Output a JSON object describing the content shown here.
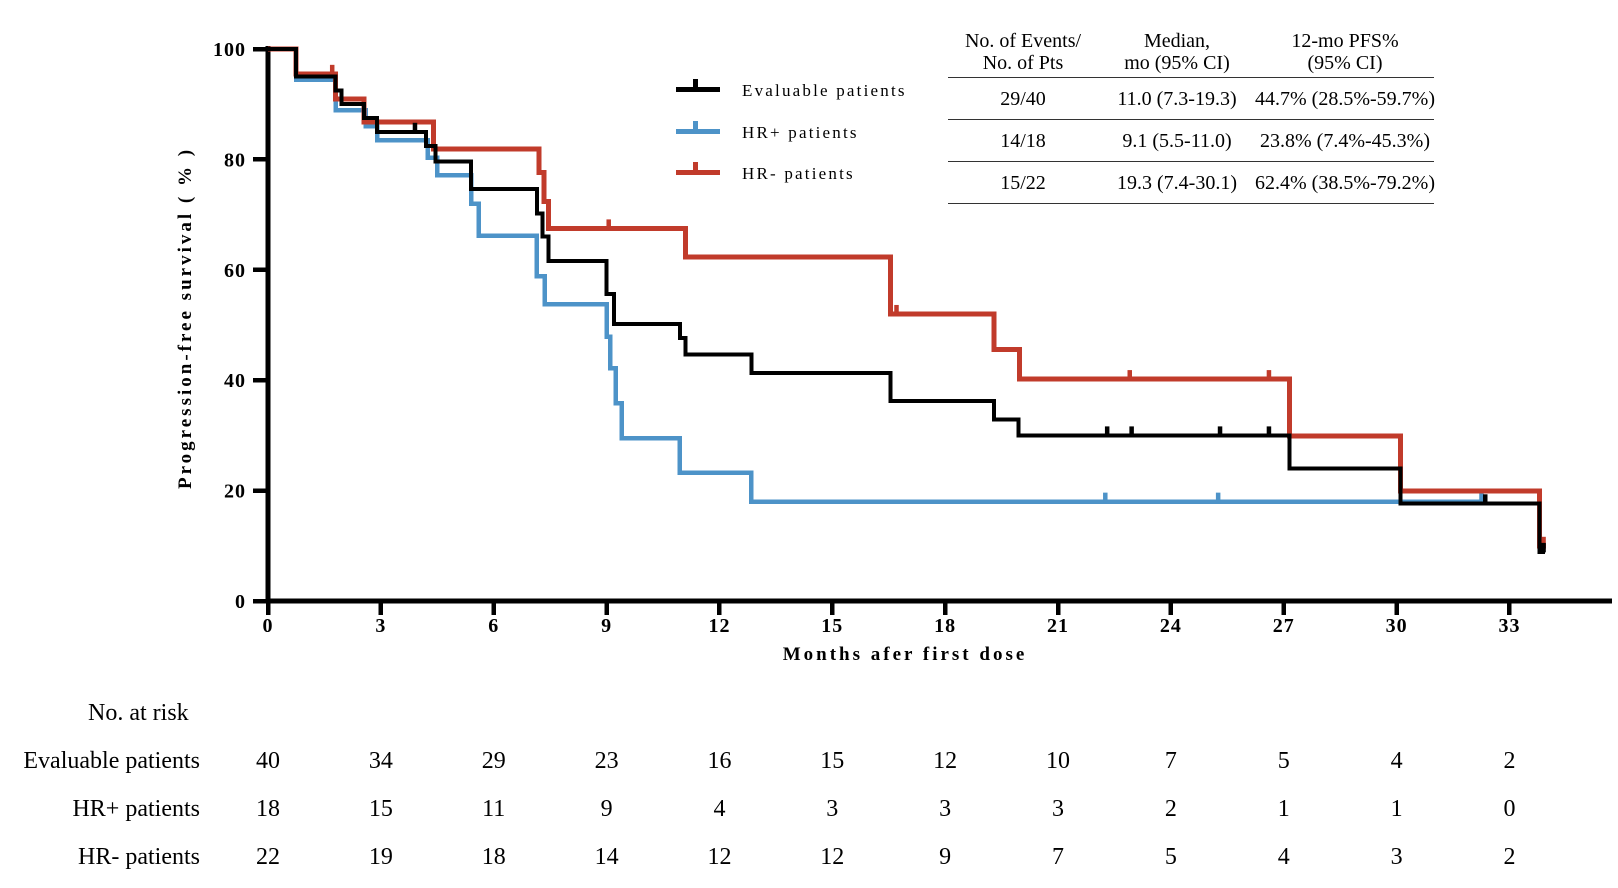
{
  "figure": {
    "y_axis_title": "Progression-free survival ( % )",
    "x_axis_title": "Months afer first dose"
  },
  "stats_table": {
    "headers": [
      [
        "No. of Events/",
        "No. of Pts"
      ],
      [
        "Median,",
        "mo (95% CI)"
      ],
      [
        "12-mo PFS%",
        "(95% CI)"
      ]
    ],
    "rows": [
      [
        "29/40",
        "11.0 (7.3-19.3)",
        "44.7% (28.5%-59.7%)"
      ],
      [
        "14/18",
        "9.1 (5.5-11.0)",
        "23.8% (7.4%-45.3%)"
      ],
      [
        "15/22",
        "19.3 (7.4-30.1)",
        "62.4% (38.5%-79.2%)"
      ]
    ]
  },
  "risk_table": {
    "title": "No. at risk",
    "months": [
      0,
      3,
      6,
      9,
      12,
      15,
      18,
      21,
      24,
      27,
      30,
      33
    ],
    "rows": [
      {
        "label": "Evaluable patients",
        "values": [
          "40",
          "34",
          "29",
          "23",
          "16",
          "15",
          "12",
          "10",
          "7",
          "5",
          "4",
          "2"
        ]
      },
      {
        "label": "HR+ patients",
        "values": [
          "18",
          "15",
          "11",
          "9",
          "4",
          "3",
          "3",
          "3",
          "2",
          "1",
          "1",
          "0"
        ]
      },
      {
        "label": "HR- patients",
        "values": [
          "22",
          "19",
          "18",
          "14",
          "12",
          "12",
          "9",
          "7",
          "5",
          "4",
          "3",
          "2"
        ]
      }
    ]
  },
  "chart_data": {
    "type": "line",
    "subtype": "kaplan-meier-step",
    "title": "",
    "xlabel": "Months afer first dose",
    "ylabel": "Progression-free survival ( % )",
    "xlim": [
      0,
      35.6
    ],
    "ylim": [
      0,
      100
    ],
    "x_ticks": [
      "0",
      "3",
      "6",
      "9",
      "12",
      "15",
      "18",
      "21",
      "24",
      "27",
      "30",
      "33"
    ],
    "y_ticks": [
      "0",
      "20",
      "40",
      "60",
      "80",
      "100"
    ],
    "grid": "off",
    "legend_position": "top-center-left",
    "series": [
      {
        "name": "HR+ patients",
        "color": "#4d93c8",
        "width": 4.5,
        "steps": [
          [
            0,
            100
          ],
          [
            0.75,
            94.4
          ],
          [
            1.8,
            88.9
          ],
          [
            2.6,
            86.0
          ],
          [
            2.9,
            83.5
          ],
          [
            4.25,
            80.3
          ],
          [
            4.5,
            77.1
          ],
          [
            5.4,
            72.0
          ],
          [
            5.6,
            66.2
          ],
          [
            7.15,
            58.8
          ],
          [
            7.35,
            53.8
          ],
          [
            9.0,
            47.9
          ],
          [
            9.1,
            42.2
          ],
          [
            9.25,
            35.8
          ],
          [
            9.4,
            29.5
          ],
          [
            10.95,
            23.2
          ],
          [
            12.85,
            18.0
          ]
        ],
        "end": 32.35,
        "censors": [
          [
            22.25,
            18.0
          ],
          [
            25.25,
            18.0
          ],
          [
            32.25,
            18.0
          ]
        ]
      },
      {
        "name": "HR- patients",
        "color": "#c13b2b",
        "width": 5,
        "steps": [
          [
            0,
            100
          ],
          [
            0.75,
            95.5
          ],
          [
            1.8,
            90.9
          ],
          [
            2.55,
            86.8
          ],
          [
            4.4,
            81.9
          ],
          [
            7.2,
            77.6
          ],
          [
            7.33,
            72.4
          ],
          [
            7.45,
            67.5
          ],
          [
            11.1,
            62.3
          ],
          [
            16.55,
            52.0
          ],
          [
            19.3,
            45.6
          ],
          [
            19.97,
            40.2
          ],
          [
            27.15,
            29.9
          ],
          [
            30.1,
            19.9
          ],
          [
            33.8,
            10.0
          ]
        ],
        "end": 33.97,
        "censors": [
          [
            1.7,
            95.5
          ],
          [
            9.05,
            67.5
          ],
          [
            16.7,
            52.0
          ],
          [
            22.9,
            40.2
          ],
          [
            26.6,
            40.2
          ],
          [
            33.9,
            10.0
          ]
        ]
      },
      {
        "name": "Evaluable patients",
        "color": "#000000",
        "width": 4,
        "steps": [
          [
            0,
            100
          ],
          [
            0.75,
            95.0
          ],
          [
            1.8,
            92.5
          ],
          [
            1.95,
            90.0
          ],
          [
            2.55,
            87.5
          ],
          [
            2.9,
            85.0
          ],
          [
            4.2,
            82.4
          ],
          [
            4.45,
            79.6
          ],
          [
            5.4,
            74.6
          ],
          [
            7.15,
            70.2
          ],
          [
            7.3,
            66.0
          ],
          [
            7.45,
            61.6
          ],
          [
            9.0,
            55.6
          ],
          [
            9.2,
            50.2
          ],
          [
            10.95,
            47.6
          ],
          [
            11.1,
            44.7
          ],
          [
            12.85,
            41.3
          ],
          [
            16.55,
            36.2
          ],
          [
            19.3,
            32.9
          ],
          [
            19.95,
            30.0
          ],
          [
            27.15,
            24.0
          ],
          [
            30.1,
            17.7
          ],
          [
            33.8,
            8.9
          ]
        ],
        "end": 33.95,
        "censors": [
          [
            3.9,
            85.0
          ],
          [
            22.3,
            30.0
          ],
          [
            22.95,
            30.0
          ],
          [
            25.3,
            30.0
          ],
          [
            26.6,
            30.0
          ],
          [
            32.35,
            17.7
          ],
          [
            33.9,
            8.9
          ]
        ]
      }
    ],
    "legend_order": [
      "Evaluable patients",
      "HR+ patients",
      "HR- patients"
    ]
  }
}
